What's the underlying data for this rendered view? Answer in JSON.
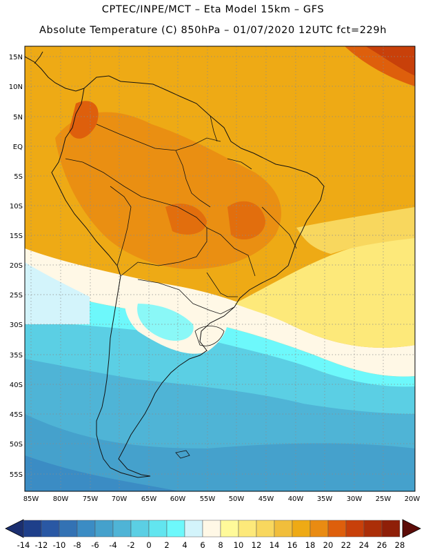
{
  "title": {
    "line1": "CPTEC/INPE/MCT –  Eta Model 15km – GFS",
    "line2": "Absolute Temperature (C) 850hPa – 01/07/2020 12UTC fct=229h"
  },
  "map": {
    "lat_labels": [
      "15N",
      "10N",
      "5N",
      "EQ",
      "5S",
      "10S",
      "15S",
      "20S",
      "25S",
      "30S",
      "35S",
      "40S",
      "45S",
      "50S",
      "55S"
    ],
    "lon_labels": [
      "85W",
      "80W",
      "75W",
      "70W",
      "65W",
      "60W",
      "55W",
      "50W",
      "45W",
      "40W",
      "35W",
      "30W",
      "25W",
      "20W"
    ],
    "lat_range": [
      -58,
      16.5
    ],
    "lon_range": [
      -86,
      -20
    ]
  },
  "colorbar": {
    "labels": [
      "-14",
      "-12",
      "-10",
      "-8",
      "-6",
      "-4",
      "-2",
      "0",
      "2",
      "4",
      "6",
      "8",
      "10",
      "12",
      "14",
      "16",
      "18",
      "20",
      "22",
      "24",
      "26",
      "28"
    ],
    "colors": [
      "#1e3f8a",
      "#2a58a4",
      "#3372b4",
      "#3b8cc4",
      "#45a1cc",
      "#4fb4d6",
      "#5bcfe4",
      "#62e5ef",
      "#6df8fb",
      "#d3f4fb",
      "#fff8e6",
      "#fffa9a",
      "#fde97a",
      "#f8d75e",
      "#f1be3b",
      "#eeaa15",
      "#e98b12",
      "#de5f0c",
      "#c8400a",
      "#ab2e08",
      "#8f1f08",
      "#6e1208"
    ]
  },
  "icons": [
    "colorbar-left-arrow",
    "colorbar-right-arrow"
  ]
}
